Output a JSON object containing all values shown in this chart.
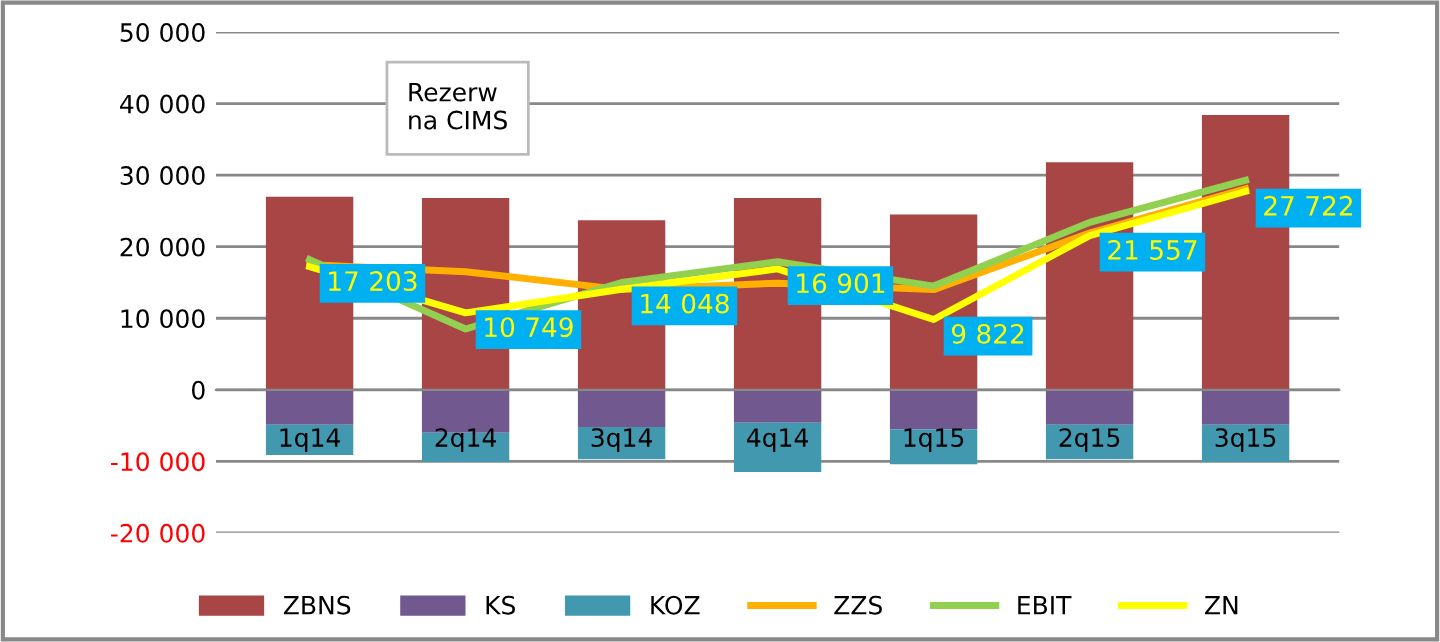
{
  "chart_data": {
    "type": "bar",
    "stacked": true,
    "categories": [
      "1q14",
      "2q14",
      "3q14",
      "4q14",
      "1q15",
      "2q15",
      "3q15"
    ],
    "series": [
      {
        "name": "ZBNS",
        "color": "#a84646",
        "values": [
          27000,
          26800,
          23700,
          26800,
          24500,
          31800,
          38400
        ]
      },
      {
        "name": "KS",
        "color": "#71588f",
        "values": [
          -4900,
          -6000,
          -5200,
          -4600,
          -5500,
          -4900,
          -4900
        ]
      },
      {
        "name": "KOZ",
        "color": "#4198af",
        "values": [
          -4200,
          -4100,
          -4500,
          -6900,
          -4900,
          -4800,
          -5200
        ]
      },
      {
        "name": "ZZS",
        "type": "line",
        "color": "#ffb000",
        "values": [
          17500,
          16500,
          14000,
          14900,
          14000,
          21900,
          28100
        ]
      },
      {
        "name": "EBIT",
        "type": "line",
        "color": "#92d050",
        "values": [
          18200,
          8500,
          15000,
          17900,
          14500,
          23400,
          29300
        ]
      },
      {
        "name": "ZN",
        "type": "line",
        "color": "#ffff00",
        "values": [
          17203,
          10749,
          14048,
          16901,
          9822,
          21557,
          27722
        ],
        "value_labels": [
          "17 203",
          "10 749",
          "14 048",
          "16 901",
          "9 822",
          "21 557",
          "27 722"
        ]
      }
    ],
    "ylim": [
      -20000,
      50000
    ],
    "yticks": [
      {
        "value": -20000,
        "label": "-20 000"
      },
      {
        "value": -10000,
        "label": "-10 000"
      },
      0,
      {
        "value": 10000,
        "label": "10 000"
      },
      {
        "value": 20000,
        "label": "20 000"
      },
      {
        "value": 30000,
        "label": "30 000"
      },
      {
        "value": 40000,
        "label": "40 000"
      },
      {
        "value": 50000,
        "label": "50 000"
      }
    ],
    "grid": "y",
    "legend": "bottom",
    "line_style": "solid",
    "marker": "none",
    "annotations": [
      "Rezerw\nna CIMS"
    ]
  }
}
